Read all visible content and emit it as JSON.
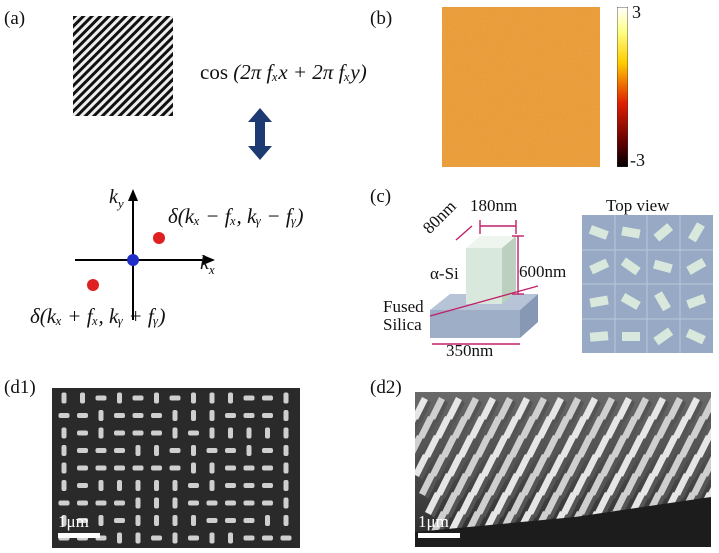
{
  "panels": {
    "a": {
      "label": "(a)",
      "formula_fn": "cos",
      "formula_arg": "(2π fₓx + 2π fₓy)",
      "ky": "k",
      "ky_sub": "y",
      "kx": "k",
      "kx_sub": "x",
      "delta1": "δ(kₓ − fₓ, kᵧ − fᵧ)",
      "delta2": "δ(kₓ + fₓ, kᵧ + fᵧ)"
    },
    "b": {
      "label": "(b)",
      "colorbar_max": "3",
      "colorbar_min": "-3"
    },
    "c": {
      "label": "(c)",
      "dim_width": "180nm",
      "dim_depth": "80nm",
      "dim_height": "600nm",
      "dim_period": "350nm",
      "material": "α-Si",
      "substrate_line1": "Fused",
      "substrate_line2": "Silica",
      "top_view": "Top view"
    },
    "d1": {
      "label": "(d1)",
      "scalebar": "1μm"
    },
    "d2": {
      "label": "(d2)",
      "scalebar": "1μm"
    }
  },
  "colors": {
    "arrow": "#1e3a73",
    "dot_red": "#e02020",
    "dot_blue": "#1f2ec8",
    "dim_line": "#c0206a",
    "pillar": "#d9e8dc",
    "substrate": "#9eaec7",
    "topview_bg": "#97a9c4",
    "topview_grid": "#b8c6da"
  }
}
